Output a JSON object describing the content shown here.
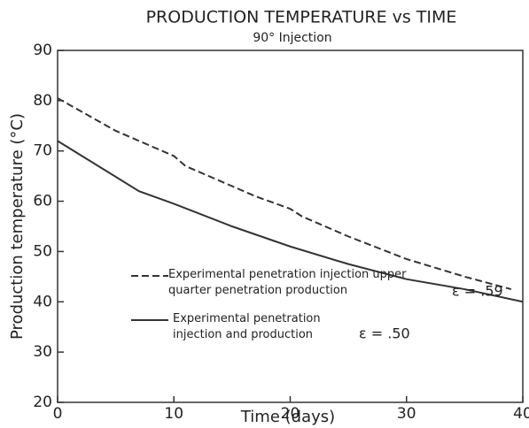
{
  "chart_data": {
    "type": "line",
    "title": "PRODUCTION TEMPERATURE vs TIME",
    "subtitle": "90° Injection",
    "x_label": "Time (days)",
    "y_label": "Production temperature (°C)",
    "xlim": [
      0,
      40
    ],
    "ylim": [
      20,
      90
    ],
    "xticks": [
      0,
      10,
      20,
      30,
      40
    ],
    "yticks": [
      20,
      30,
      40,
      50,
      60,
      70,
      80,
      90
    ],
    "grid": false,
    "series": [
      {
        "name": "Experimental penetration injection upper quarter penetration production",
        "color": "#333333",
        "dash": true,
        "x": [
          0,
          5,
          10,
          11,
          15,
          17,
          20,
          21,
          25,
          30,
          35,
          39
        ],
        "values": [
          80.5,
          74,
          69,
          67,
          63,
          61,
          58.5,
          57,
          53,
          48.5,
          45,
          42.5
        ]
      },
      {
        "name": "Experimental penetration injection and production",
        "color": "#333333",
        "dash": false,
        "x": [
          0,
          7,
          10,
          15,
          20,
          25,
          30,
          35,
          40
        ],
        "values": [
          72,
          62,
          59.5,
          55,
          51,
          47.5,
          44.5,
          42.5,
          40
        ]
      }
    ],
    "annotations": [
      "ε = .59",
      "ε = .50"
    ]
  }
}
